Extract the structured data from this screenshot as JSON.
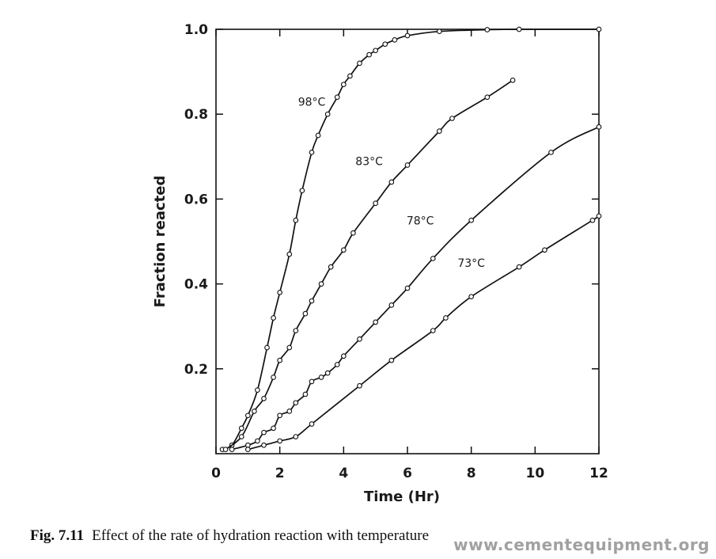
{
  "chart_data": {
    "type": "line",
    "xlabel": "Time (Hr)",
    "ylabel": "Fraction reacted",
    "xlim": [
      0,
      12
    ],
    "ylim": [
      0,
      1.0
    ],
    "x_ticks": [
      "0",
      "2",
      "4",
      "6",
      "8",
      "10",
      "12"
    ],
    "y_ticks": [
      "0.2",
      "0.4",
      "0.6",
      "0.8",
      "1.0"
    ],
    "grid": false,
    "markers": "open-circle",
    "series": [
      {
        "name": "98°C",
        "x": [
          0.2,
          0.5,
          0.8,
          1.0,
          1.3,
          1.6,
          1.8,
          2.0,
          2.3,
          2.5,
          2.7,
          3.0,
          3.2,
          3.5,
          3.8,
          4.0,
          4.2,
          4.5,
          4.8,
          5.0,
          5.3,
          5.6,
          6.0,
          7.0,
          8.5,
          9.5,
          12.0
        ],
        "y": [
          0.01,
          0.02,
          0.06,
          0.09,
          0.15,
          0.25,
          0.32,
          0.38,
          0.47,
          0.55,
          0.62,
          0.71,
          0.75,
          0.8,
          0.84,
          0.87,
          0.89,
          0.92,
          0.94,
          0.95,
          0.965,
          0.975,
          0.985,
          0.995,
          0.999,
          1.0,
          1.0
        ]
      },
      {
        "name": "83°C",
        "x": [
          0.3,
          0.8,
          1.2,
          1.5,
          1.8,
          2.0,
          2.3,
          2.5,
          2.8,
          3.0,
          3.3,
          3.6,
          4.0,
          4.3,
          5.0,
          5.5,
          6.0,
          7.0,
          7.4,
          8.5,
          9.3
        ],
        "y": [
          0.01,
          0.04,
          0.1,
          0.13,
          0.18,
          0.22,
          0.25,
          0.29,
          0.33,
          0.36,
          0.4,
          0.44,
          0.48,
          0.52,
          0.59,
          0.64,
          0.68,
          0.76,
          0.79,
          0.84,
          0.88
        ]
      },
      {
        "name": "78°C",
        "x": [
          0.5,
          1.0,
          1.3,
          1.5,
          1.8,
          2.0,
          2.3,
          2.5,
          2.8,
          3.0,
          3.3,
          3.5,
          3.8,
          4.0,
          4.5,
          5.0,
          5.5,
          6.0,
          6.8,
          8.0,
          10.5,
          12.0
        ],
        "y": [
          0.01,
          0.02,
          0.03,
          0.05,
          0.06,
          0.09,
          0.1,
          0.12,
          0.14,
          0.17,
          0.18,
          0.19,
          0.21,
          0.23,
          0.27,
          0.31,
          0.35,
          0.39,
          0.46,
          0.55,
          0.71,
          0.77
        ]
      },
      {
        "name": "73°C",
        "x": [
          1.0,
          1.5,
          2.0,
          2.5,
          3.0,
          4.5,
          5.5,
          6.8,
          7.2,
          8.0,
          9.5,
          10.3,
          11.8,
          12.0
        ],
        "y": [
          0.01,
          0.02,
          0.03,
          0.04,
          0.07,
          0.16,
          0.22,
          0.29,
          0.32,
          0.37,
          0.44,
          0.48,
          0.55,
          0.56
        ]
      }
    ]
  },
  "caption": {
    "fig_number": "Fig. 7.11",
    "text": "Effect of the rate of hydration reaction with temperature"
  },
  "watermark": "www.cementequipment.org"
}
